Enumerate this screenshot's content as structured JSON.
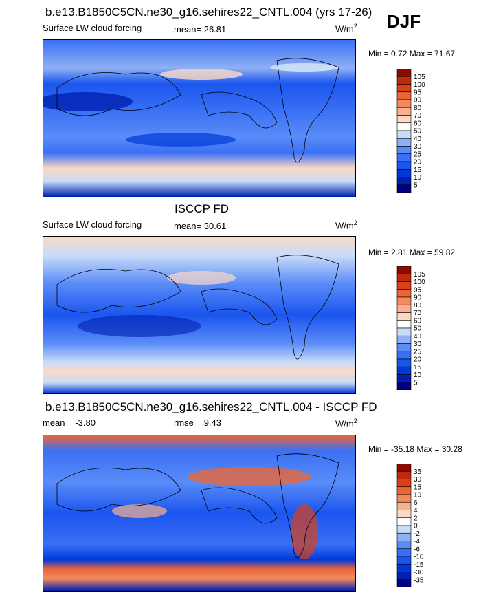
{
  "season": "DJF",
  "panels": [
    {
      "title": "b.e13.B1850C5CN.ne30_g16.sehires22_CNTL.004 (yrs 17-26)",
      "left_label": "Surface LW cloud forcing",
      "center_label": "mean=  26.81",
      "units": "W/m",
      "units_sup": "2",
      "minmax": "Min =   0.72 Max =  71.67"
    },
    {
      "title": "ISCCP FD",
      "left_label": "Surface LW cloud forcing",
      "center_label": "mean=  30.61",
      "units": "W/m",
      "units_sup": "2",
      "minmax": "Min =   2.81 Max =  59.82"
    },
    {
      "title": "b.e13.B1850C5CN.ne30_g16.sehires22_CNTL.004 - ISCCP FD",
      "left_label": "mean =  -3.80",
      "center_label": "rmse =    9.43",
      "units": "W/m",
      "units_sup": "2",
      "minmax": "Min = -35.18 Max =  30.28"
    }
  ],
  "chart_data": [
    {
      "type": "heatmap",
      "title": "b.e13.B1850C5CN.ne30_g16.sehires22_CNTL.004 (yrs 17-26)",
      "variable": "Surface LW cloud forcing",
      "mean": 26.81,
      "min": 0.72,
      "max": 71.67,
      "colorbar_levels": [
        5,
        10,
        15,
        20,
        25,
        30,
        40,
        50,
        60,
        70,
        80,
        90,
        95,
        100,
        105
      ]
    },
    {
      "type": "heatmap",
      "title": "ISCCP FD",
      "variable": "Surface LW cloud forcing",
      "mean": 30.61,
      "min": 2.81,
      "max": 59.82,
      "colorbar_levels": [
        5,
        10,
        15,
        20,
        25,
        30,
        40,
        50,
        60,
        70,
        80,
        90,
        95,
        100,
        105
      ]
    },
    {
      "type": "heatmap",
      "title": "b.e13.B1850C5CN.ne30_g16.sehires22_CNTL.004 - ISCCP FD",
      "mean": -3.8,
      "rmse": 9.43,
      "min": -35.18,
      "max": 30.28,
      "colorbar_levels": [
        -35,
        -30,
        -15,
        -10,
        -6,
        -4,
        -2,
        0,
        2,
        4,
        6,
        10,
        15,
        30,
        35
      ]
    }
  ],
  "colors": {
    "scale": [
      "#00007f",
      "#0020b0",
      "#0038d8",
      "#1a55ee",
      "#3a70f5",
      "#5a8cf8",
      "#8fb0f5",
      "#c8dcf8",
      "#ffffff",
      "#fbd9c6",
      "#f8b090",
      "#f28a5e",
      "#ea6636",
      "#dc4018",
      "#c02a0a",
      "#8a0a00"
    ]
  }
}
